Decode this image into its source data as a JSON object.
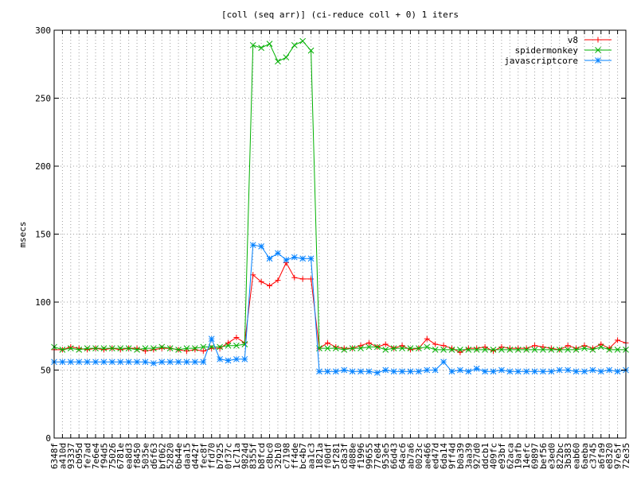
{
  "chart_data": {
    "type": "line",
    "title": "[coll (seq arr)] (ci-reduce coll + 0) 1 iters",
    "xlabel": "",
    "ylabel": "msecs",
    "ylim": [
      0,
      300
    ],
    "yticks": [
      0,
      50,
      100,
      150,
      200,
      250,
      300
    ],
    "grid": true,
    "legend_position": "top-right",
    "categories": [
      "6348f",
      "a410d",
      "93337",
      "cb95d",
      "fe7ad",
      "7e6e4",
      "f94d5",
      "75026",
      "6781e",
      "ea8d3",
      "f8450",
      "5035e",
      "d6f63",
      "bf062",
      "52820",
      "6b44e",
      "daa15",
      "d442f",
      "fec8f",
      "ffd70",
      "b7925",
      "0f37c",
      "1c71a",
      "9824d",
      "8355f",
      "b8fcd",
      "c8bc0",
      "32b10",
      "c7198",
      "ff4de",
      "bc4b7",
      "aa1c3",
      "1821a",
      "f00df",
      "5f281",
      "c8a3f",
      "4088e",
      "f1996",
      "99655",
      "77e84",
      "953e5",
      "66d43",
      "64ac6",
      "ab7a6",
      "0023c",
      "ae466",
      "ed47d",
      "6da14",
      "9ff4d",
      "b0a39",
      "3aa39",
      "927d0",
      "ddcb1",
      "409fc",
      "e93bf",
      "62aca",
      "19afb",
      "14efc",
      "69897",
      "bef56",
      "e3ed0",
      "822bc",
      "3b383",
      "eab60",
      "6aeba",
      "c3745",
      "a6fa9",
      "e8320",
      "97e5f",
      "72e35"
    ],
    "series": [
      {
        "name": "v8",
        "color": "#ff0000",
        "marker": "plus",
        "values": [
          65,
          65,
          67,
          66,
          65,
          66,
          65,
          66,
          65,
          66,
          66,
          64,
          65,
          66,
          66,
          65,
          64,
          65,
          64,
          66,
          66,
          70,
          74,
          70,
          120,
          115,
          112,
          116,
          129,
          118,
          117,
          117,
          66,
          70,
          67,
          66,
          66,
          68,
          70,
          67,
          69,
          66,
          68,
          65,
          66,
          73,
          69,
          68,
          66,
          63,
          66,
          66,
          67,
          64,
          67,
          66,
          66,
          66,
          68,
          67,
          66,
          65,
          68,
          66,
          68,
          66,
          69,
          66,
          72,
          70
        ]
      },
      {
        "name": "spidermonkey",
        "color": "#00b000",
        "marker": "cross",
        "values": [
          67,
          65,
          66,
          65,
          66,
          66,
          66,
          66,
          66,
          66,
          65,
          66,
          66,
          67,
          66,
          65,
          66,
          66,
          67,
          67,
          67,
          68,
          68,
          69,
          289,
          287,
          290,
          277,
          280,
          289,
          292,
          285,
          66,
          66,
          66,
          65,
          66,
          66,
          67,
          67,
          65,
          66,
          66,
          66,
          66,
          67,
          65,
          65,
          65,
          65,
          65,
          65,
          65,
          65,
          65,
          65,
          65,
          65,
          65,
          65,
          65,
          65,
          65,
          65,
          66,
          65,
          67,
          65,
          65,
          65
        ]
      },
      {
        "name": "javascriptcore",
        "color": "#0080ff",
        "marker": "star",
        "values": [
          56,
          56,
          56,
          56,
          56,
          56,
          56,
          56,
          56,
          56,
          56,
          56,
          55,
          56,
          56,
          56,
          56,
          56,
          56,
          73,
          58,
          57,
          58,
          58,
          142,
          141,
          132,
          136,
          131,
          133,
          132,
          132,
          49,
          49,
          49,
          50,
          49,
          49,
          49,
          48,
          50,
          49,
          49,
          49,
          49,
          50,
          50,
          56,
          49,
          50,
          49,
          51,
          49,
          49,
          50,
          49,
          49,
          49,
          49,
          49,
          49,
          50,
          50,
          49,
          49,
          50,
          49,
          50,
          49,
          50
        ]
      }
    ]
  }
}
